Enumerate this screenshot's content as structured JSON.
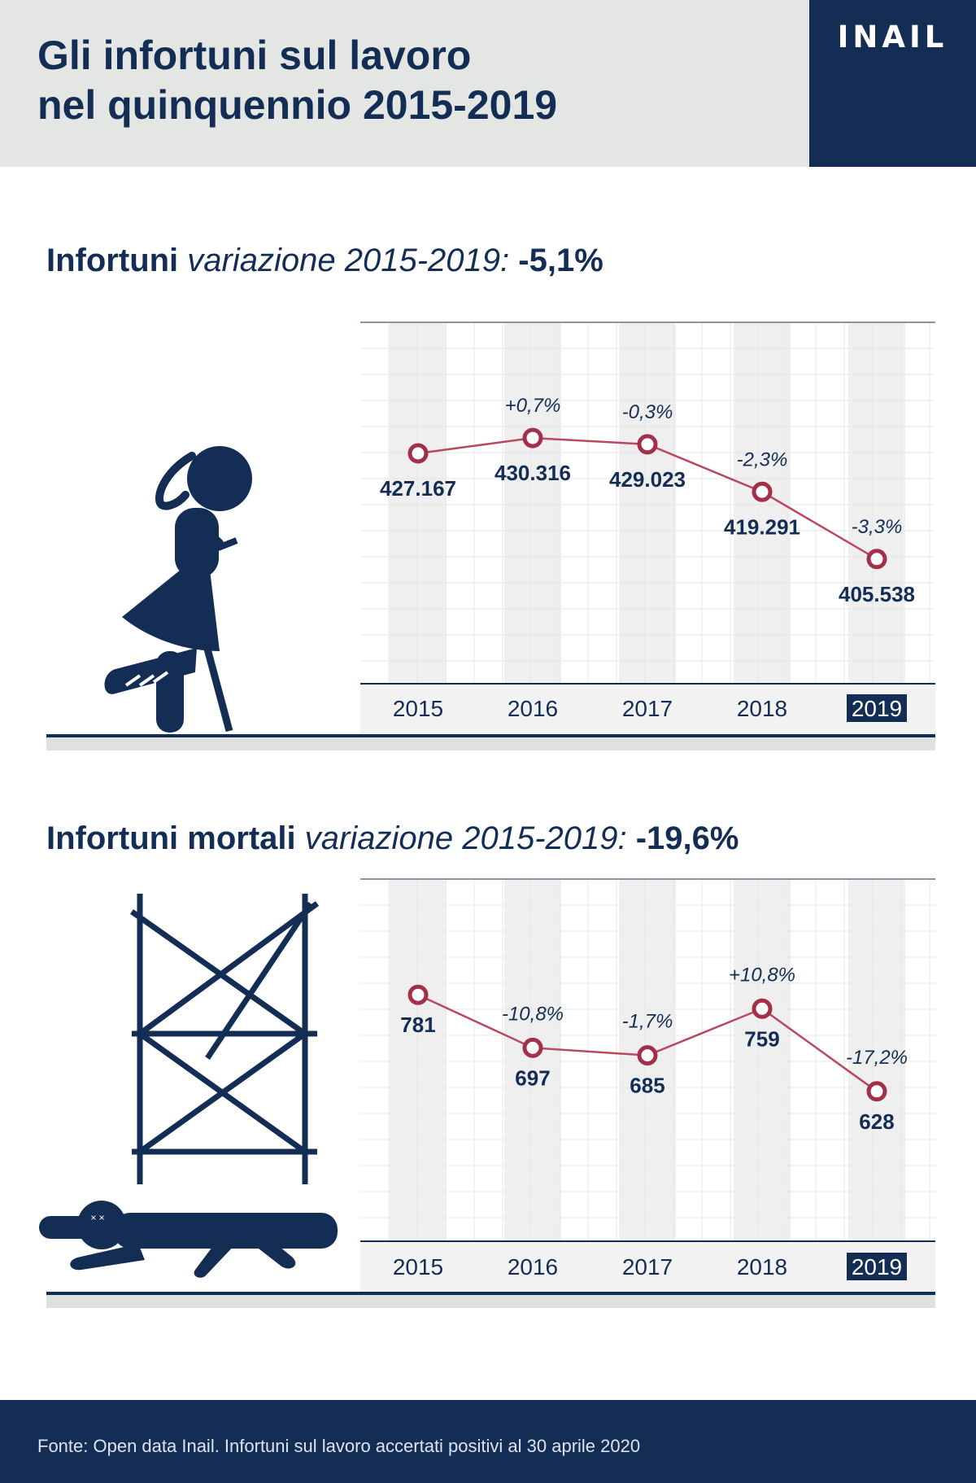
{
  "header": {
    "title_line1": "Gli infortuni sul lavoro",
    "title_line2": "nel quinquennio 2015-2019",
    "logo": "INAIL"
  },
  "sections": [
    {
      "title_bold": "Infortuni",
      "title_italic": "variazione 2015-2019:",
      "title_value": "-5,1%",
      "illustration": "injured-worker-on-crutch-icon"
    },
    {
      "title_bold": "Infortuni mortali",
      "title_italic": "variazione 2015-2019:",
      "title_value": "-19,6%",
      "illustration": "fallen-worker-under-scaffold-icon"
    }
  ],
  "chart_data": [
    {
      "type": "line",
      "x": [
        "2015",
        "2016",
        "2017",
        "2018",
        "2019"
      ],
      "highlight_x": "2019",
      "series": [
        {
          "values": [
            427167,
            430316,
            429023,
            419291,
            405538
          ],
          "value_labels": [
            "427.167",
            "430.316",
            "429.023",
            "419.291",
            "405.538"
          ],
          "change_labels": [
            "",
            "+0,7%",
            "-0,3%",
            "-2,3%",
            "-3,3%"
          ]
        }
      ],
      "ylim": [
        390000,
        450000
      ],
      "grid": true,
      "colors": {
        "line": "#b9485e",
        "marker": "#a23048",
        "axis": "#142d55",
        "highlight_bg": "#142d55"
      }
    },
    {
      "type": "line",
      "x": [
        "2015",
        "2016",
        "2017",
        "2018",
        "2019"
      ],
      "highlight_x": "2019",
      "series": [
        {
          "values": [
            781,
            697,
            685,
            759,
            628
          ],
          "value_labels": [
            "781",
            "697",
            "685",
            "759",
            "628"
          ],
          "change_labels": [
            "",
            "-10,8%",
            "-1,7%",
            "+10,8%",
            "-17,2%"
          ]
        }
      ],
      "ylim": [
        500,
        900
      ],
      "grid": true,
      "colors": {
        "line": "#b9485e",
        "marker": "#a23048",
        "axis": "#142d55",
        "highlight_bg": "#142d55"
      }
    }
  ],
  "footer": {
    "source": "Fonte: Open data Inail. Infortuni sul lavoro accertati positivi al 30 aprile 2020"
  }
}
